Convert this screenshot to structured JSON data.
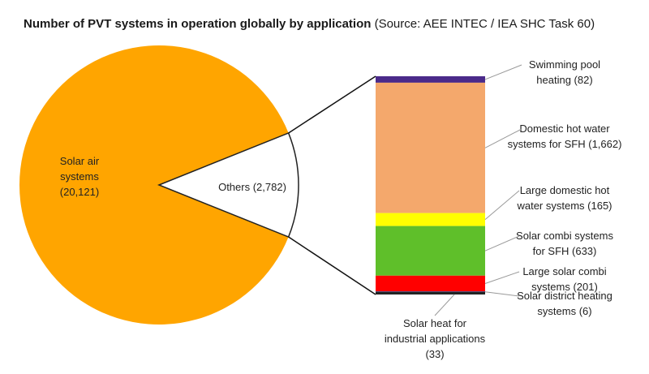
{
  "title": "Number of PVT systems in operation globally by application",
  "source": "(Source: AEE INTEC / IEA SHC Task 60)",
  "chart_data": {
    "type": "bar-of-pie",
    "pie": [
      {
        "name": "Solar air systems",
        "value": 20121,
        "value_label": "(20,121)",
        "color": "#ffa500"
      },
      {
        "name": "Others",
        "value": 2782,
        "value_label": "(2,782)",
        "color": "#ffffff"
      }
    ],
    "breakdown": [
      {
        "name": "Swimming pool heating",
        "value": 82,
        "label_lines": [
          "Swimming pool",
          "heating (82)"
        ],
        "color": "#4b2a8a"
      },
      {
        "name": "Domestic hot water systems for SFH",
        "value": 1662,
        "label_lines": [
          "Domestic hot water",
          "systems for SFH (1,662)"
        ],
        "color": "#f4a86c"
      },
      {
        "name": "Large domestic hot water systems",
        "value": 165,
        "label_lines": [
          "Large domestic hot",
          "water systems (165)"
        ],
        "color": "#ffff00"
      },
      {
        "name": "Solar combi systems for SFH",
        "value": 633,
        "label_lines": [
          "Solar combi systems",
          "for SFH (633)"
        ],
        "color": "#5fbf2a"
      },
      {
        "name": "Large solar combi systems",
        "value": 201,
        "label_lines": [
          "Large solar combi",
          "systems (201)"
        ],
        "color": "#ff0000"
      },
      {
        "name": "Solar district heating systems",
        "value": 6,
        "label_lines": [
          "Solar district heating",
          "systems (6)"
        ],
        "color": "#1f4e9a"
      },
      {
        "name": "Solar heat for industrial applications",
        "value": 33,
        "label_lines": [
          "Solar heat for",
          "industrial applications",
          "(33)"
        ],
        "color": "#222222"
      }
    ]
  }
}
